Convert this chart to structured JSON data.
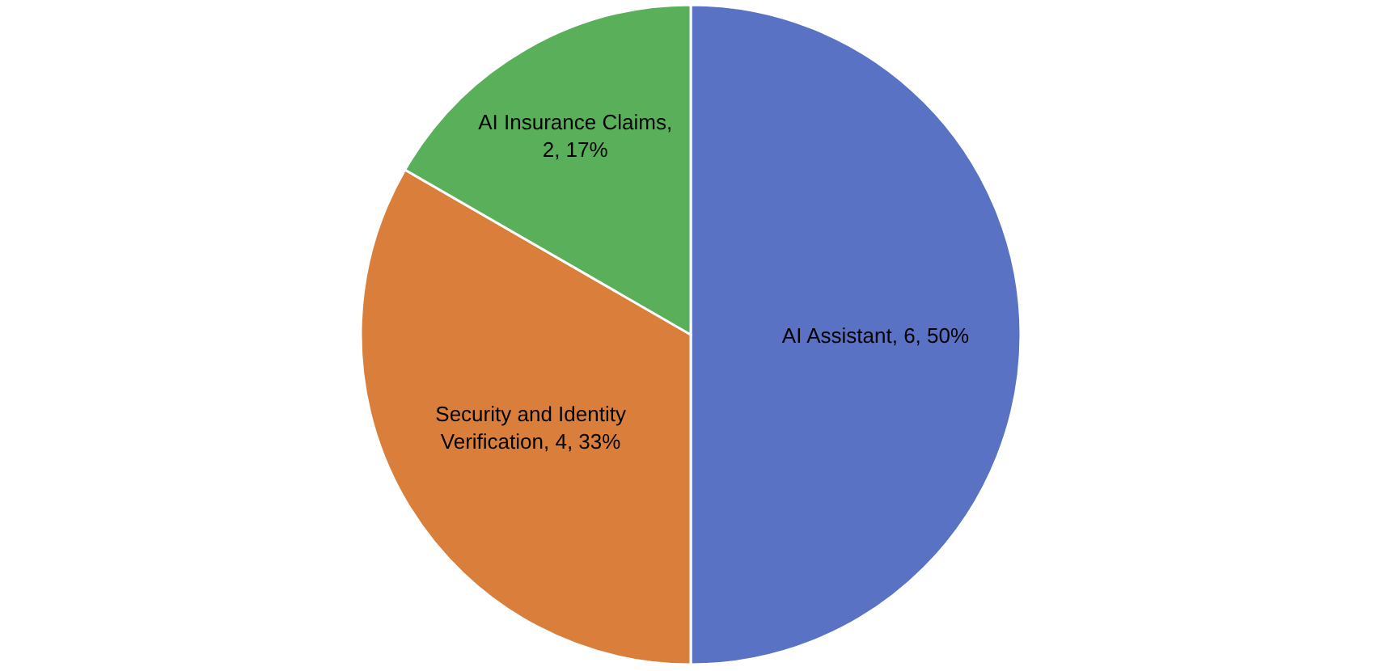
{
  "chart_data": {
    "type": "pie",
    "categories": [
      "AI Assistant",
      "Security and Identity Verification",
      "AI Insurance Claims"
    ],
    "values": [
      6,
      4,
      2
    ],
    "colors": [
      "#5a72c4",
      "#d97f3b",
      "#5ab05a"
    ],
    "value_labels": [
      ", 6, 50%",
      ", 4, 33%",
      ", 2, 17%"
    ],
    "legend": false
  }
}
